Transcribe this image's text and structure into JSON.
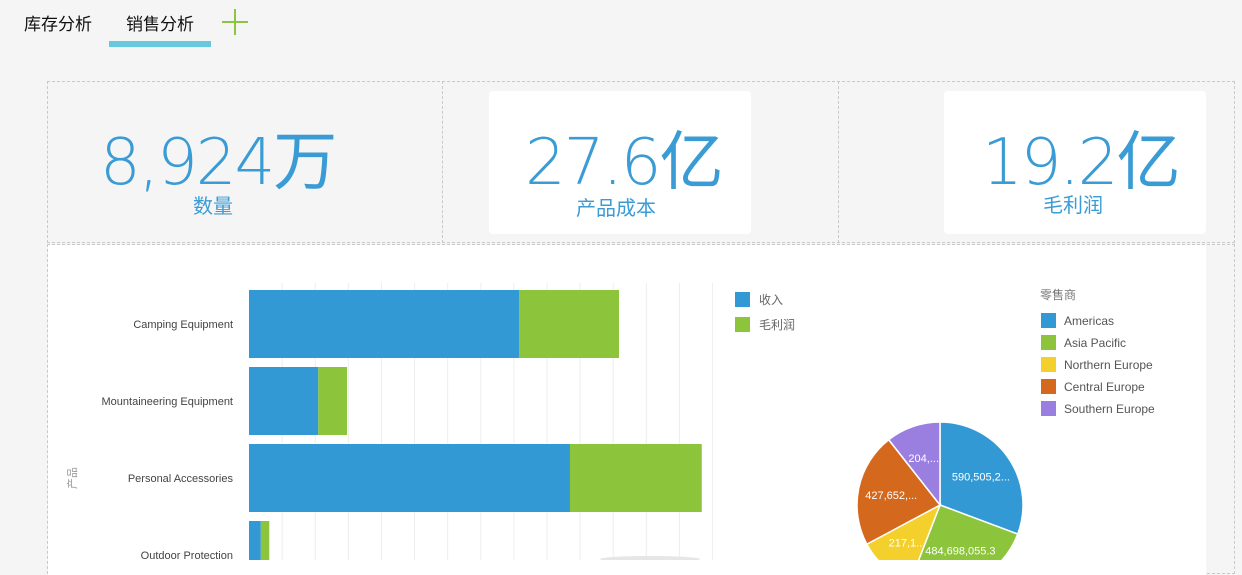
{
  "tabs": [
    {
      "label": "库存分析",
      "active": false
    },
    {
      "label": "销售分析",
      "active": true
    }
  ],
  "add_tab_icon": "plus-icon",
  "accent_color": "#66c9dc",
  "kpis": [
    {
      "value": "8,924万",
      "label": "数量"
    },
    {
      "value": "27.6亿",
      "label": "产品成本"
    },
    {
      "value": "19.2亿",
      "label": "毛利润"
    }
  ],
  "bar_chart": {
    "ylabel": "产品",
    "legend": [
      "收入",
      "毛利润"
    ],
    "colors": [
      "#3399d4",
      "#8cc43c"
    ]
  },
  "pie_chart": {
    "legend_title": "零售商",
    "legend": [
      "Americas",
      "Asia Pacific",
      "Northern Europe",
      "Central Europe",
      "Southern Europe"
    ],
    "colors": [
      "#3399d4",
      "#8cc43c",
      "#f3d02c",
      "#d4681d",
      "#9b7fe0"
    ],
    "slice_labels": [
      "590,505,2...",
      "484,698,055.3",
      "217,1...",
      "427,652,...",
      "204,..."
    ]
  },
  "chart_data": [
    {
      "type": "bar",
      "orientation": "horizontal",
      "stacked": true,
      "categories": [
        "Camping Equipment",
        "Mountaineering Equipment",
        "Personal Accessories",
        "Outdoor Protection"
      ],
      "series": [
        {
          "name": "收入",
          "values": [
            80,
            20.5,
            95,
            3.5
          ]
        },
        {
          "name": "毛利润",
          "values": [
            29.5,
            8.5,
            39,
            2.5
          ]
        }
      ],
      "xlim": [
        0,
        140
      ],
      "ylabel": "产品"
    },
    {
      "type": "pie",
      "categories": [
        "Americas",
        "Asia Pacific",
        "Northern Europe",
        "Central Europe",
        "Southern Europe"
      ],
      "values": [
        590505200,
        484698055.3,
        217100000,
        427652000,
        204000000
      ],
      "legend_title": "零售商"
    }
  ]
}
